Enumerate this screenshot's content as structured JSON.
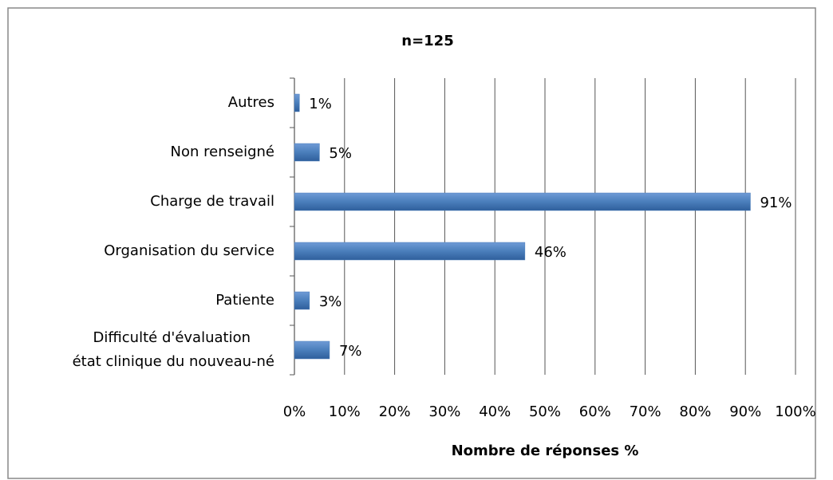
{
  "chart_data": {
    "type": "bar",
    "orientation": "horizontal",
    "title": "n=125",
    "x_axis_label": "Nombre de réponses %",
    "categories": [
      "Autres",
      "Non renseigné",
      "Charge de travail",
      "Organisation du service",
      "Patiente",
      "Difficulté d'évaluation\nétat clinique du nouveau-né"
    ],
    "values": [
      1,
      5,
      91,
      46,
      3,
      7
    ],
    "value_labels": [
      "1%",
      "5%",
      "91%",
      "46%",
      "3%",
      "7%"
    ],
    "color": "#4a7ebb",
    "xlim": [
      0,
      100
    ],
    "xticks": [
      {
        "value": 0,
        "label": "0%"
      },
      {
        "value": 10,
        "label": "10%"
      },
      {
        "value": 20,
        "label": "20%"
      },
      {
        "value": 30,
        "label": "30%"
      },
      {
        "value": 40,
        "label": "40%"
      },
      {
        "value": 50,
        "label": "50%"
      },
      {
        "value": 60,
        "label": "60%"
      },
      {
        "value": 70,
        "label": "70%"
      },
      {
        "value": 80,
        "label": "80%"
      },
      {
        "value": 90,
        "label": "90%"
      },
      {
        "value": 100,
        "label": "100%"
      }
    ],
    "grid": true
  }
}
